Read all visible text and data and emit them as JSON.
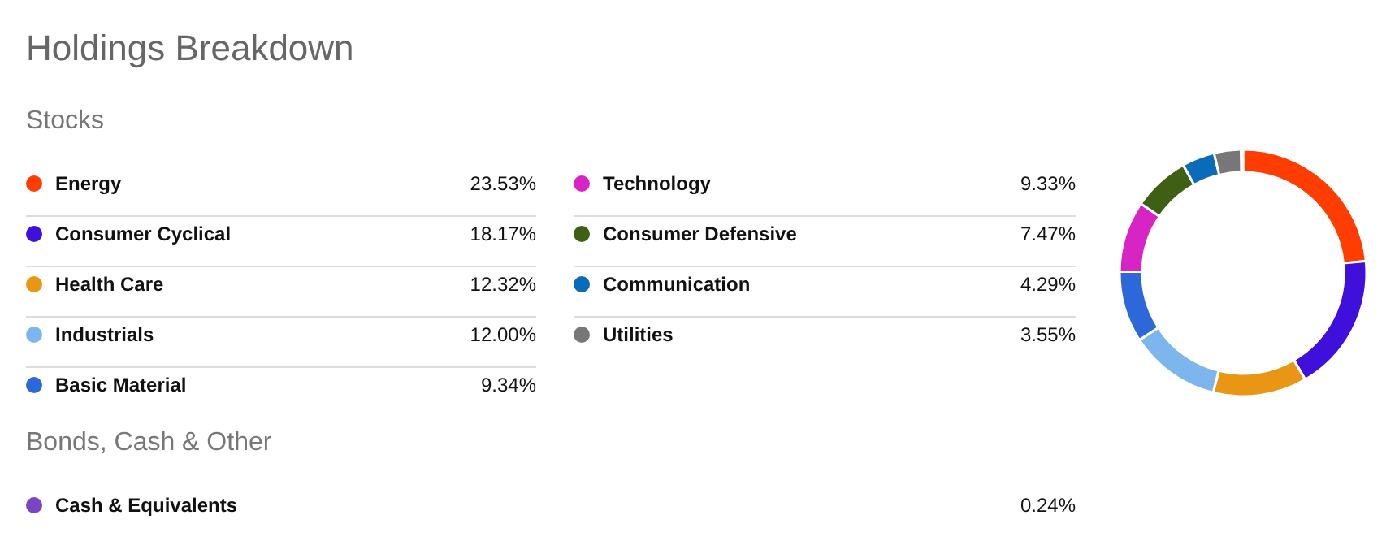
{
  "chart_data": {
    "type": "donut",
    "title": "Holdings Breakdown",
    "subtitle": "Stocks",
    "annotations": [
      "Bonds, Cash & Other"
    ],
    "categories": [
      "Energy",
      "Consumer Cyclical",
      "Health Care",
      "Industrials",
      "Basic Material",
      "Technology",
      "Consumer Defensive",
      "Communication",
      "Utilities",
      "Cash & Equivalents"
    ],
    "values": [
      23.53,
      18.17,
      12.32,
      12.0,
      9.34,
      9.33,
      7.47,
      4.29,
      3.55,
      0.24
    ],
    "value_labels": [
      "23.53%",
      "18.17%",
      "12.32%",
      "12.00%",
      "9.34%",
      "9.33%",
      "7.47%",
      "4.29%",
      "3.55%",
      "0.24%"
    ],
    "colors": [
      "#ff3d00",
      "#3f0fdc",
      "#e89614",
      "#7db6ec",
      "#2d68db",
      "#d625c4",
      "#3f5f14",
      "#0a6cb8",
      "#777777",
      "#7b44c4"
    ],
    "legend": "left"
  }
}
